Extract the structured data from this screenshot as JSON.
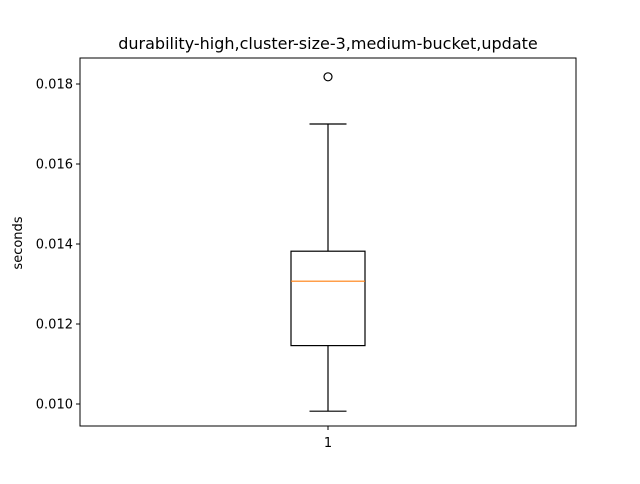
{
  "chart_data": {
    "type": "box",
    "title": "durability-high,cluster-size-3,medium-bucket,update",
    "xlabel": "",
    "ylabel": "seconds",
    "categories": [
      "1"
    ],
    "ylim": [
      0.00945,
      0.01865
    ],
    "yticks": [
      0.01,
      0.012,
      0.014,
      0.016,
      0.018
    ],
    "ytick_labels": [
      "0.010",
      "0.012",
      "0.014",
      "0.016",
      "0.018"
    ],
    "boxes": [
      {
        "category": "1",
        "whisker_low": 0.00982,
        "q1": 0.01146,
        "median": 0.01307,
        "q3": 0.01382,
        "whisker_high": 0.017,
        "outliers": [
          0.01818
        ]
      }
    ],
    "grid": false,
    "colors": {
      "median": "#ff7f0e",
      "box": "#000000",
      "background": "#ffffff"
    }
  }
}
